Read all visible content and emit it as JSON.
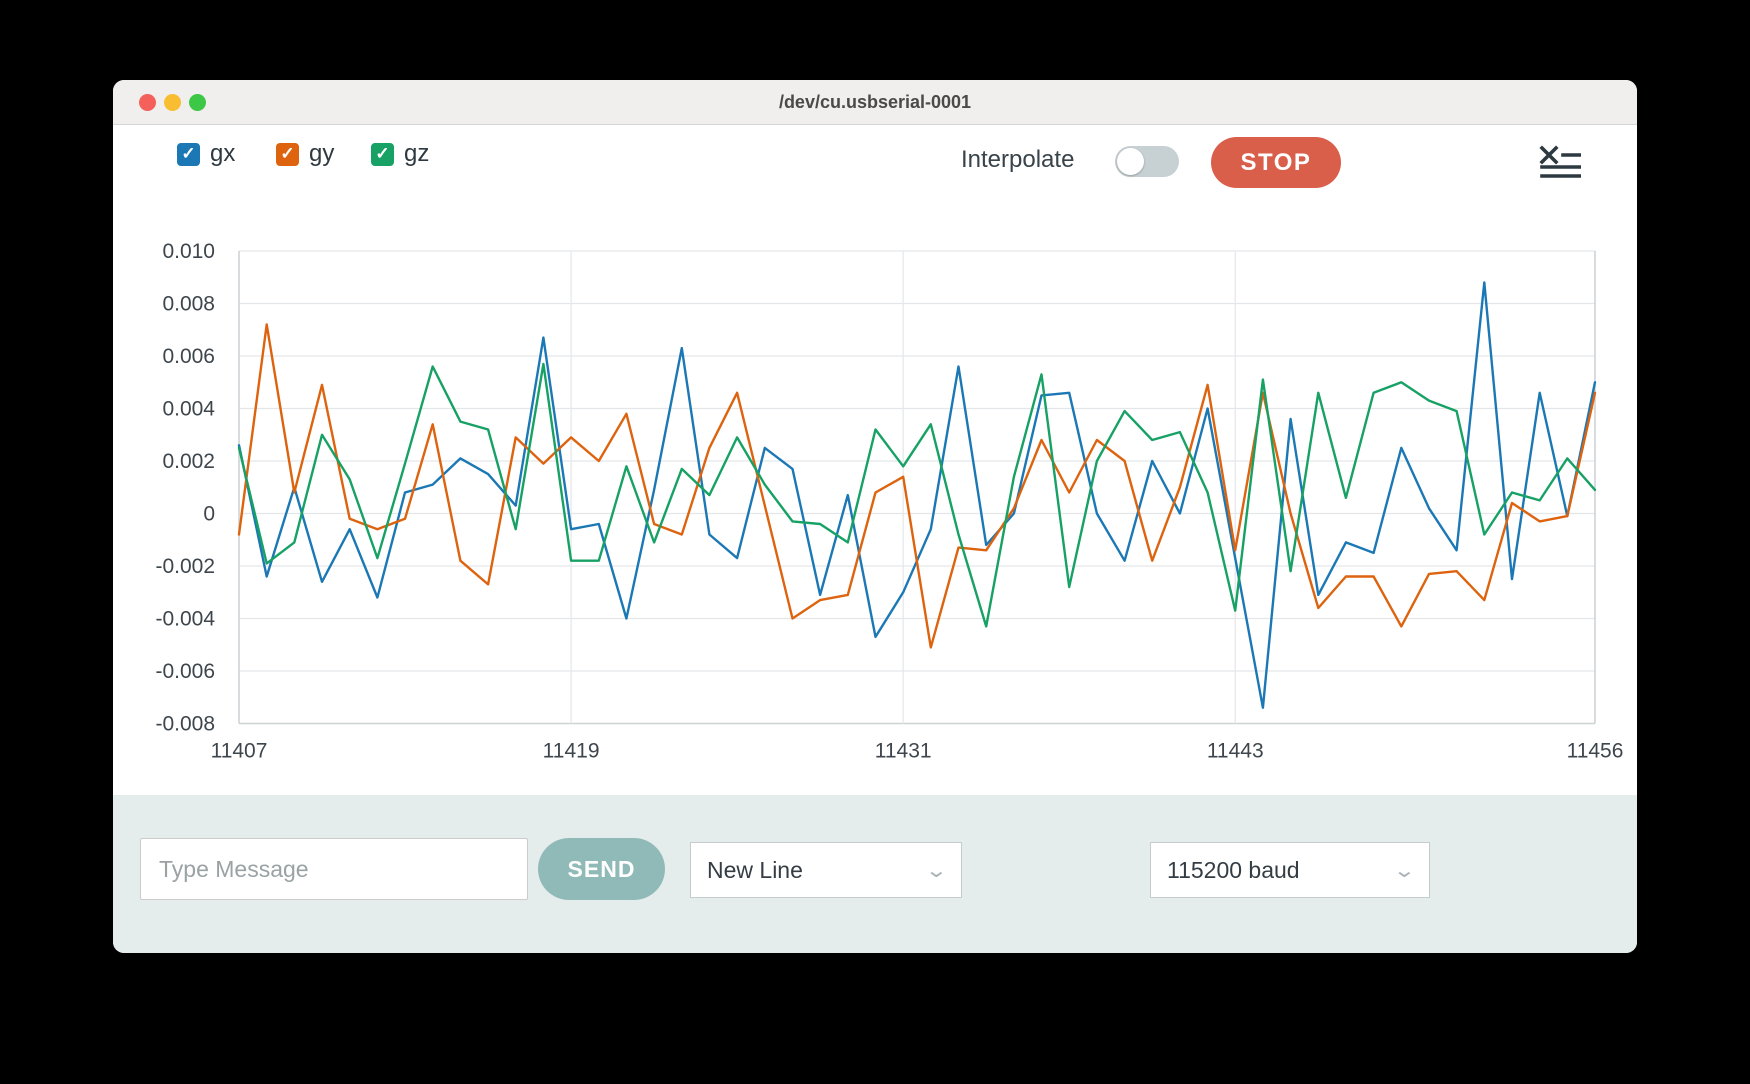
{
  "window": {
    "title": "/dev/cu.usbserial-0001"
  },
  "toolbar": {
    "series_toggles": [
      {
        "label": "gx",
        "color": "#1b78b5",
        "checked": true,
        "checkmark": "✓"
      },
      {
        "label": "gy",
        "color": "#dd630f",
        "checked": true,
        "checkmark": "✓"
      },
      {
        "label": "gz",
        "color": "#17a164",
        "checked": true,
        "checkmark": "✓"
      }
    ],
    "interpolate_label": "Interpolate",
    "interpolate_on": false,
    "stop_label": "STOP",
    "stop_color": "#d95f4b"
  },
  "chart_data": {
    "type": "line",
    "title": "",
    "xlabel": "",
    "ylabel": "",
    "grid": true,
    "legend_position": "top-left (checkbox legend)",
    "ylim": [
      -0.008,
      0.01
    ],
    "ytick_step": 0.002,
    "xticks": [
      11407,
      11419,
      11431,
      11443,
      11456
    ],
    "x": [
      11407,
      11408,
      11409,
      11410,
      11411,
      11412,
      11413,
      11414,
      11415,
      11416,
      11417,
      11418,
      11419,
      11420,
      11421,
      11422,
      11423,
      11424,
      11425,
      11426,
      11427,
      11428,
      11429,
      11430,
      11431,
      11432,
      11433,
      11434,
      11435,
      11436,
      11437,
      11438,
      11439,
      11440,
      11441,
      11442,
      11443,
      11444,
      11445,
      11446,
      11447,
      11448,
      11449,
      11450,
      11451,
      11452,
      11453,
      11454,
      11455,
      11456
    ],
    "series": [
      {
        "name": "gx",
        "color": "#1b78b5",
        "values": [
          0.0026,
          -0.0024,
          0.001,
          -0.0026,
          -0.0006,
          -0.0032,
          0.0008,
          0.0011,
          0.0021,
          0.0015,
          0.0003,
          0.0067,
          -0.0006,
          -0.0004,
          -0.004,
          0.0009,
          0.0063,
          -0.0008,
          -0.0017,
          0.0025,
          0.0017,
          -0.0031,
          0.0007,
          -0.0047,
          -0.003,
          -0.0006,
          0.0056,
          -0.0012,
          0.0,
          0.0045,
          0.0046,
          0.0,
          -0.0018,
          0.002,
          0.0,
          0.004,
          -0.0017,
          -0.0074,
          0.0036,
          -0.0031,
          -0.0011,
          -0.0015,
          0.0025,
          0.0002,
          -0.0014,
          0.0088,
          -0.0025,
          0.0046,
          -0.0001,
          0.005
        ]
      },
      {
        "name": "gy",
        "color": "#dd630f",
        "values": [
          -0.0008,
          0.0072,
          0.0008,
          0.0049,
          -0.0002,
          -0.0006,
          -0.0002,
          0.0034,
          -0.0018,
          -0.0027,
          0.0029,
          0.0019,
          0.0029,
          0.002,
          0.0038,
          -0.0004,
          -0.0008,
          0.0025,
          0.0046,
          0.0003,
          -0.004,
          -0.0033,
          -0.0031,
          0.0008,
          0.0014,
          -0.0051,
          -0.0013,
          -0.0014,
          0.0002,
          0.0028,
          0.0008,
          0.0028,
          0.002,
          -0.0018,
          0.001,
          0.0049,
          -0.0014,
          0.0046,
          0.0,
          -0.0036,
          -0.0024,
          -0.0024,
          -0.0043,
          -0.0023,
          -0.0022,
          -0.0033,
          0.0004,
          -0.0003,
          -0.0001,
          0.0046
        ]
      },
      {
        "name": "gz",
        "color": "#17a164",
        "values": [
          0.0025,
          -0.0019,
          -0.0011,
          0.003,
          0.0013,
          -0.0017,
          0.0019,
          0.0056,
          0.0035,
          0.0032,
          -0.0006,
          0.0057,
          -0.0018,
          -0.0018,
          0.0018,
          -0.0011,
          0.0017,
          0.0007,
          0.0029,
          0.0011,
          -0.0003,
          -0.0004,
          -0.0011,
          0.0032,
          0.0018,
          0.0034,
          -0.0008,
          -0.0043,
          0.0014,
          0.0053,
          -0.0028,
          0.002,
          0.0039,
          0.0028,
          0.0031,
          0.0008,
          -0.0037,
          0.0051,
          -0.0022,
          0.0046,
          0.0006,
          0.0046,
          0.005,
          0.0043,
          0.0039,
          -0.0008,
          0.0008,
          0.0005,
          0.0021,
          0.0009
        ]
      }
    ]
  },
  "bottom_bar": {
    "message_placeholder": "Type Message",
    "send_label": "SEND",
    "send_color": "#90bab8",
    "line_ending_selected": "New Line",
    "baud_selected": "115200 baud",
    "chevron": "⌄"
  },
  "colors": {
    "titlebar_bg": "#f1efed",
    "panel_bg": "#e5edec",
    "grid": "#e4e7e9",
    "axis": "#ced3d5",
    "tick_text": "#3e464d"
  }
}
